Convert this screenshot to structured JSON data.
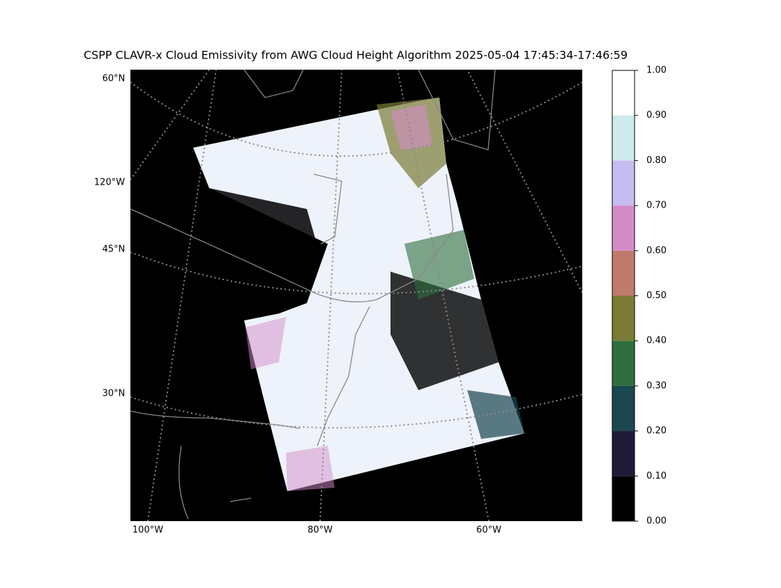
{
  "title": "CSPP CLAVR-x Cloud Emissivity from AWG Cloud Height Algorithm 2025-05-04 17:45:34-17:46:59",
  "map": {
    "lat_labels": [
      "60°N",
      "45°N",
      "30°N"
    ],
    "lon_labels_left": [
      "120°W"
    ],
    "lon_labels_bottom": [
      "100°W",
      "80°W",
      "60°W"
    ]
  },
  "colorbar": {
    "ticks": [
      {
        "value": 0,
        "label": "0.00"
      },
      {
        "value": 0.1,
        "label": "0.10"
      },
      {
        "value": 0.2,
        "label": "0.20"
      },
      {
        "value": 0.3,
        "label": "0.30"
      },
      {
        "value": 0.4,
        "label": "0.40"
      },
      {
        "value": 0.5,
        "label": "0.50"
      },
      {
        "value": 0.6,
        "label": "0.60"
      },
      {
        "value": 0.7,
        "label": "0.70"
      },
      {
        "value": 0.8,
        "label": "0.80"
      },
      {
        "value": 0.9,
        "label": "0.90"
      },
      {
        "value": 1,
        "label": "1.00"
      }
    ],
    "colors": [
      "#000000",
      "#1f1a3a",
      "#19464f",
      "#2d6e3c",
      "#7a7c35",
      "#c07a6c",
      "#d48cc7",
      "#c5bcef",
      "#cdeaec",
      "#ffffff"
    ]
  }
}
